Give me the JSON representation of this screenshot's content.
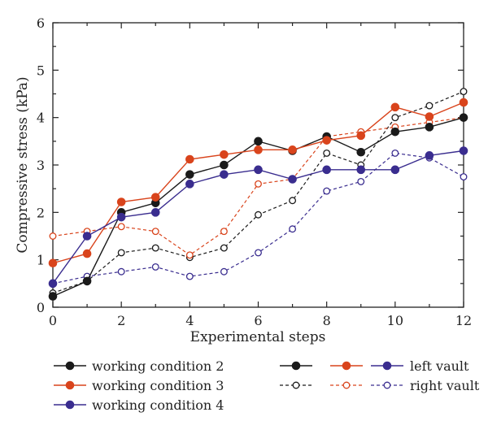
{
  "chart_data": {
    "type": "line",
    "xlabel": "Experimental steps",
    "ylabel": "Compressive stress (kPa)",
    "xlim": [
      0,
      12
    ],
    "ylim": [
      0,
      6
    ],
    "x_ticks": [
      "0",
      "2",
      "4",
      "6",
      "8",
      "10",
      "12"
    ],
    "y_ticks": [
      "0",
      "1",
      "2",
      "3",
      "4",
      "5",
      "6"
    ],
    "grid": false,
    "legend_position": "bottom",
    "x": [
      0,
      1,
      2,
      3,
      4,
      5,
      6,
      7,
      8,
      9,
      10,
      11,
      12
    ],
    "series": [
      {
        "name": "working condition 2 left vault",
        "color": "#1a1a1a",
        "style": "solid",
        "marker": "filled",
        "values": [
          0.23,
          0.55,
          2.0,
          2.2,
          2.8,
          3.0,
          3.5,
          3.3,
          3.6,
          3.27,
          3.7,
          3.8,
          4.0
        ]
      },
      {
        "name": "working condition 3 left vault",
        "color": "#d9441c",
        "style": "solid",
        "marker": "filled",
        "values": [
          0.93,
          1.13,
          2.22,
          2.32,
          3.12,
          3.22,
          3.32,
          3.32,
          3.52,
          3.62,
          4.22,
          4.02,
          4.32
        ]
      },
      {
        "name": "working condition 4 left vault",
        "color": "#3a2d8f",
        "style": "solid",
        "marker": "filled",
        "values": [
          0.5,
          1.5,
          1.9,
          2.0,
          2.6,
          2.8,
          2.9,
          2.7,
          2.9,
          2.9,
          2.9,
          3.2,
          3.3
        ]
      },
      {
        "name": "working condition 2 right vault",
        "color": "#1a1a1a",
        "style": "dashed",
        "marker": "open",
        "values": [
          0.3,
          0.55,
          1.15,
          1.25,
          1.05,
          1.25,
          1.95,
          2.25,
          3.25,
          3.0,
          4.0,
          4.25,
          4.55
        ]
      },
      {
        "name": "working condition 3 right vault",
        "color": "#d9441c",
        "style": "dashed",
        "marker": "open",
        "values": [
          1.5,
          1.6,
          1.7,
          1.6,
          1.1,
          1.6,
          2.6,
          2.7,
          3.6,
          3.7,
          3.8,
          3.9,
          4.0
        ]
      },
      {
        "name": "working condition 4 right vault",
        "color": "#3a2d8f",
        "style": "dashed",
        "marker": "open",
        "values": [
          0.5,
          0.65,
          0.75,
          0.85,
          0.65,
          0.75,
          1.15,
          1.65,
          2.45,
          2.65,
          3.25,
          3.15,
          2.75
        ]
      }
    ],
    "legend": {
      "conditions": [
        {
          "label": "working condition 2",
          "color": "#1a1a1a"
        },
        {
          "label": "working condition 3",
          "color": "#d9441c"
        },
        {
          "label": "working condition 4",
          "color": "#3a2d8f"
        }
      ],
      "vaults": [
        {
          "label": "left vault",
          "style": "solid",
          "marker": "filled"
        },
        {
          "label": "right vault",
          "style": "dashed",
          "marker": "open"
        }
      ]
    }
  }
}
